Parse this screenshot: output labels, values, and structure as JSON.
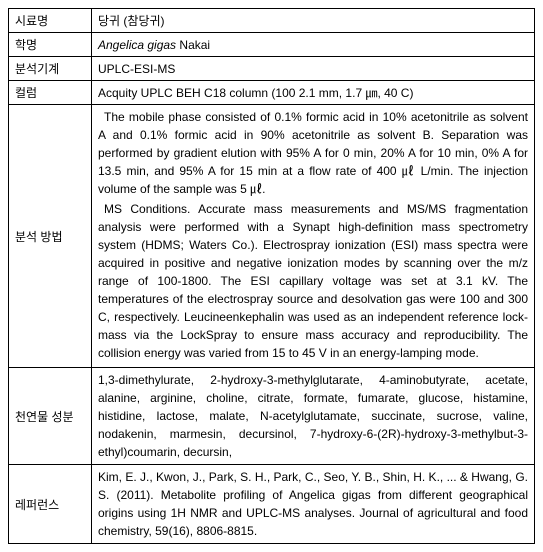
{
  "rows": {
    "sample_name": {
      "label": "시료명",
      "value": "당귀 (참당귀)"
    },
    "scientific_name": {
      "label": "학명",
      "value_italic": "Angelica gigas",
      "value_rest": " Nakai"
    },
    "instrument": {
      "label": "분석기계",
      "value": "UPLC-ESI-MS"
    },
    "column": {
      "label": "컬럼",
      "value": "Acquity UPLC BEH C18 column (100   2.1 mm, 1.7 ㎛, 40 C)"
    },
    "method": {
      "label": "분석 방법",
      "para1": "The mobile phase consisted of 0.1% formic acid in 10% acetonitrile as solvent A and 0.1% formic acid in 90% acetonitrile as solvent B. Separation was performed by gradient elution with 95% A for 0 min, 20% A for 10 min, 0% A for 13.5 min, and 95% A for 15 min at a flow rate of 400 ㎕ L/min. The injection volume of the sample was 5 ㎕.",
      "para2": "MS Conditions. Accurate mass measurements and MS/MS fragmentation analysis were performed with a Synapt high-definition mass spectrometry system (HDMS; Waters Co.). Electrospray ionization (ESI) mass spectra were acquired in positive and negative ionization modes by scanning over the m/z range of 100‑1800. The ESI capillary voltage was set at 3.1 kV. The temperatures of the electrospray source and desolvation gas were 100 and 300 C, respectively. Leucineenkephalin was used as an independent reference lock-mass via the LockSpray to ensure mass accuracy and reproducibility. The collision energy was varied from 15 to 45 V in an energy-lamping mode."
    },
    "components": {
      "label": "천연물 성분",
      "value": "1,3-dimethylurate, 2-hydroxy-3-methylglutarate, 4-aminobutyrate, acetate, alanine, arginine, choline, citrate, formate, fumarate, glucose, histamine, histidine, lactose, malate, N-acetylglutamate, succinate, sucrose, valine, nodakenin, marmesin, decursinol, 7-hydroxy-6-(2R)-hydroxy-3-methylbut-3-ethyl)coumarin, decursin,"
    },
    "reference": {
      "label": "레퍼런스",
      "value": "Kim, E. J., Kwon, J., Park, S. H., Park, C., Seo, Y. B., Shin, H. K., ... & Hwang, G. S. (2011). Metabolite profiling of Angelica gigas from different geographical origins using 1H NMR and UPLC-MS analyses. Journal of agricultural and food chemistry, 59(16), 8806-8815."
    }
  }
}
